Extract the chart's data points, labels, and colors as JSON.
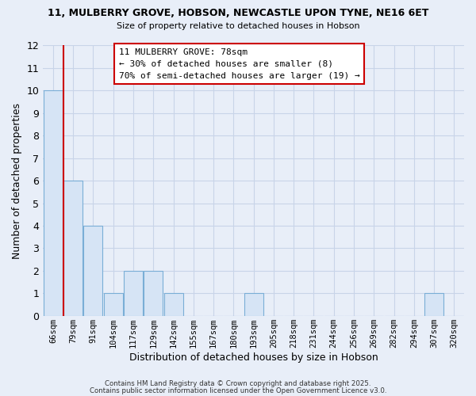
{
  "title_line1": "11, MULBERRY GROVE, HOBSON, NEWCASTLE UPON TYNE, NE16 6ET",
  "title_line2": "Size of property relative to detached houses in Hobson",
  "xlabel": "Distribution of detached houses by size in Hobson",
  "ylabel": "Number of detached properties",
  "categories": [
    "66sqm",
    "79sqm",
    "91sqm",
    "104sqm",
    "117sqm",
    "129sqm",
    "142sqm",
    "155sqm",
    "167sqm",
    "180sqm",
    "193sqm",
    "205sqm",
    "218sqm",
    "231sqm",
    "244sqm",
    "256sqm",
    "269sqm",
    "282sqm",
    "294sqm",
    "307sqm",
    "320sqm"
  ],
  "values": [
    10,
    6,
    4,
    1,
    2,
    2,
    1,
    0,
    0,
    0,
    1,
    0,
    0,
    0,
    0,
    0,
    0,
    0,
    0,
    1,
    0
  ],
  "bar_fill_color": "#d6e4f5",
  "bar_edge_color": "#7aaed6",
  "vline_color": "#cc0000",
  "vline_x": 0.5,
  "ylim": [
    0,
    12
  ],
  "yticks": [
    0,
    1,
    2,
    3,
    4,
    5,
    6,
    7,
    8,
    9,
    10,
    11,
    12
  ],
  "annotation_text": "11 MULBERRY GROVE: 78sqm\n← 30% of detached houses are smaller (8)\n70% of semi-detached houses are larger (19) →",
  "annotation_box_edgecolor": "#cc0000",
  "bg_color": "#e8eef8",
  "grid_color": "#c8d4e8",
  "footer_line1": "Contains HM Land Registry data © Crown copyright and database right 2025.",
  "footer_line2": "Contains public sector information licensed under the Open Government Licence v3.0."
}
